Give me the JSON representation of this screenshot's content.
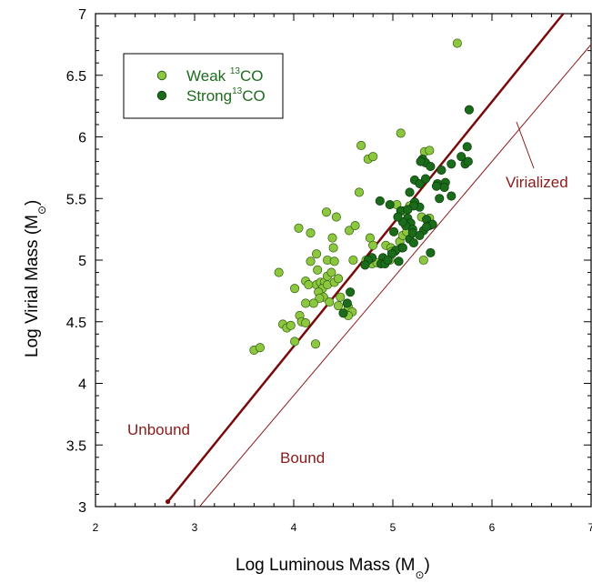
{
  "chart_data": {
    "type": "scatter",
    "xlabel": "Log Luminous Mass (M",
    "ylabel": "Log Virial Mass (M",
    "unit_symbol": "⊙",
    "xlim": [
      2,
      7
    ],
    "ylim": [
      3,
      7
    ],
    "x_ticks": [
      "2",
      "3",
      "4",
      "5",
      "6",
      "7"
    ],
    "y_ticks": [
      "3",
      "3.5",
      "4",
      "4.5",
      "5",
      "5.5",
      "6",
      "6.5",
      "7"
    ],
    "legend": {
      "placement": "top-left",
      "entries": [
        {
          "prefix": "Weak ",
          "sup": "13",
          "suffix": "CO"
        },
        {
          "prefix": "Strong",
          "sup": "13",
          "suffix": "CO"
        }
      ]
    },
    "annotations": {
      "unbound": "Unbound",
      "bound": "Bound",
      "virialized": "Virialized"
    },
    "lines": [
      {
        "name": "thick",
        "x": [
          2.73,
          6.72
        ],
        "y": [
          3.04,
          7.0
        ],
        "color": "#7a0a0a"
      },
      {
        "name": "virialized",
        "x": [
          3.05,
          7.0
        ],
        "y": [
          3.0,
          6.75
        ],
        "color": "#8b1a1a"
      }
    ],
    "colors": {
      "weak": "#8dc63f",
      "strong": "#1a6b1a",
      "legend_text": "#1e6b1e",
      "annotation": "#8b1a1a"
    },
    "series": [
      {
        "name": "Weak 13CO",
        "points": [
          [
            5.65,
            6.76
          ],
          [
            5.08,
            6.03
          ],
          [
            4.68,
            5.93
          ],
          [
            4.75,
            5.82
          ],
          [
            4.8,
            5.84
          ],
          [
            5.32,
            5.88
          ],
          [
            5.37,
            5.89
          ],
          [
            4.66,
            5.55
          ],
          [
            4.33,
            5.39
          ],
          [
            4.43,
            5.35
          ],
          [
            4.05,
            5.26
          ],
          [
            4.17,
            5.22
          ],
          [
            4.39,
            5.18
          ],
          [
            4.56,
            5.24
          ],
          [
            4.62,
            5.28
          ],
          [
            4.4,
            5.1
          ],
          [
            4.23,
            5.05
          ],
          [
            4.34,
            5.0
          ],
          [
            3.85,
            4.9
          ],
          [
            4.01,
            4.77
          ],
          [
            4.17,
            4.99
          ],
          [
            4.41,
            4.99
          ],
          [
            4.24,
            4.92
          ],
          [
            4.23,
            4.8
          ],
          [
            4.27,
            4.82
          ],
          [
            4.31,
            4.82
          ],
          [
            4.29,
            4.77
          ],
          [
            4.25,
            4.74
          ],
          [
            4.34,
            4.87
          ],
          [
            4.38,
            4.9
          ],
          [
            4.34,
            4.8
          ],
          [
            4.41,
            4.82
          ],
          [
            4.45,
            4.85
          ],
          [
            4.12,
            4.83
          ],
          [
            4.15,
            4.8
          ],
          [
            4.3,
            4.7
          ],
          [
            4.36,
            4.66
          ],
          [
            4.26,
            4.69
          ],
          [
            4.2,
            4.65
          ],
          [
            4.12,
            4.65
          ],
          [
            4.06,
            4.55
          ],
          [
            4.08,
            4.5
          ],
          [
            4.12,
            4.49
          ],
          [
            3.89,
            4.48
          ],
          [
            3.93,
            4.45
          ],
          [
            3.97,
            4.47
          ],
          [
            4.01,
            4.34
          ],
          [
            3.6,
            4.27
          ],
          [
            3.66,
            4.29
          ],
          [
            4.22,
            4.32
          ],
          [
            4.45,
            4.63
          ],
          [
            4.55,
            4.62
          ],
          [
            4.59,
            4.58
          ],
          [
            4.55,
            4.55
          ],
          [
            4.47,
            4.7
          ],
          [
            4.6,
            5.0
          ],
          [
            4.73,
            5.0
          ],
          [
            4.79,
            4.97
          ],
          [
            4.84,
            4.98
          ],
          [
            4.77,
            5.18
          ],
          [
            4.8,
            5.12
          ],
          [
            4.93,
            5.12
          ],
          [
            4.98,
            5.1
          ],
          [
            4.99,
            5.07
          ],
          [
            5.02,
            5.07
          ],
          [
            5.07,
            5.15
          ],
          [
            5.1,
            5.2
          ],
          [
            5.14,
            5.23
          ],
          [
            5.11,
            5.4
          ],
          [
            5.17,
            5.44
          ],
          [
            5.04,
            5.45
          ],
          [
            5.29,
            5.35
          ],
          [
            5.31,
            5.0
          ],
          [
            4.97,
            5.0
          ],
          [
            5.37,
            5.34
          ]
        ]
      },
      {
        "name": "Strong 13CO",
        "points": [
          [
            5.77,
            6.22
          ],
          [
            5.3,
            5.82
          ],
          [
            5.33,
            5.79
          ],
          [
            5.38,
            5.76
          ],
          [
            5.28,
            5.8
          ],
          [
            5.49,
            5.73
          ],
          [
            5.59,
            5.78
          ],
          [
            5.69,
            5.84
          ],
          [
            5.75,
            5.92
          ],
          [
            5.73,
            5.78
          ],
          [
            5.76,
            5.8
          ],
          [
            5.22,
            5.65
          ],
          [
            5.27,
            5.62
          ],
          [
            5.33,
            5.66
          ],
          [
            5.45,
            5.62
          ],
          [
            5.53,
            5.63
          ],
          [
            5.52,
            5.59
          ],
          [
            5.44,
            5.6
          ],
          [
            5.47,
            5.5
          ],
          [
            5.59,
            5.52
          ],
          [
            5.17,
            5.55
          ],
          [
            5.22,
            5.47
          ],
          [
            5.27,
            5.43
          ],
          [
            4.87,
            5.48
          ],
          [
            4.97,
            5.45
          ],
          [
            5.08,
            5.4
          ],
          [
            5.21,
            5.44
          ],
          [
            5.15,
            5.41
          ],
          [
            5.15,
            5.34
          ],
          [
            5.18,
            5.3
          ],
          [
            5.13,
            5.28
          ],
          [
            5.1,
            5.31
          ],
          [
            5.05,
            5.35
          ],
          [
            5.34,
            5.33
          ],
          [
            5.37,
            5.28
          ],
          [
            5.4,
            5.29
          ],
          [
            5.2,
            5.25
          ],
          [
            5.31,
            5.24
          ],
          [
            5.34,
            5.27
          ],
          [
            5.01,
            5.23
          ],
          [
            5.09,
            5.1
          ],
          [
            5.17,
            5.17
          ],
          [
            5.2,
            5.22
          ],
          [
            5.27,
            5.2
          ],
          [
            5.03,
            5.08
          ],
          [
            4.99,
            5.05
          ],
          [
            4.9,
            5.02
          ],
          [
            4.88,
            4.97
          ],
          [
            4.92,
            4.97
          ],
          [
            4.95,
            5.0
          ],
          [
            4.79,
            5.02
          ],
          [
            4.75,
            5.0
          ],
          [
            4.72,
            4.96
          ],
          [
            5.06,
            4.99
          ],
          [
            5.1,
            5.1
          ],
          [
            5.38,
            5.06
          ],
          [
            4.57,
            4.74
          ],
          [
            4.5,
            4.57
          ],
          [
            4.54,
            4.65
          ],
          [
            5.21,
            5.14
          ]
        ]
      }
    ]
  }
}
